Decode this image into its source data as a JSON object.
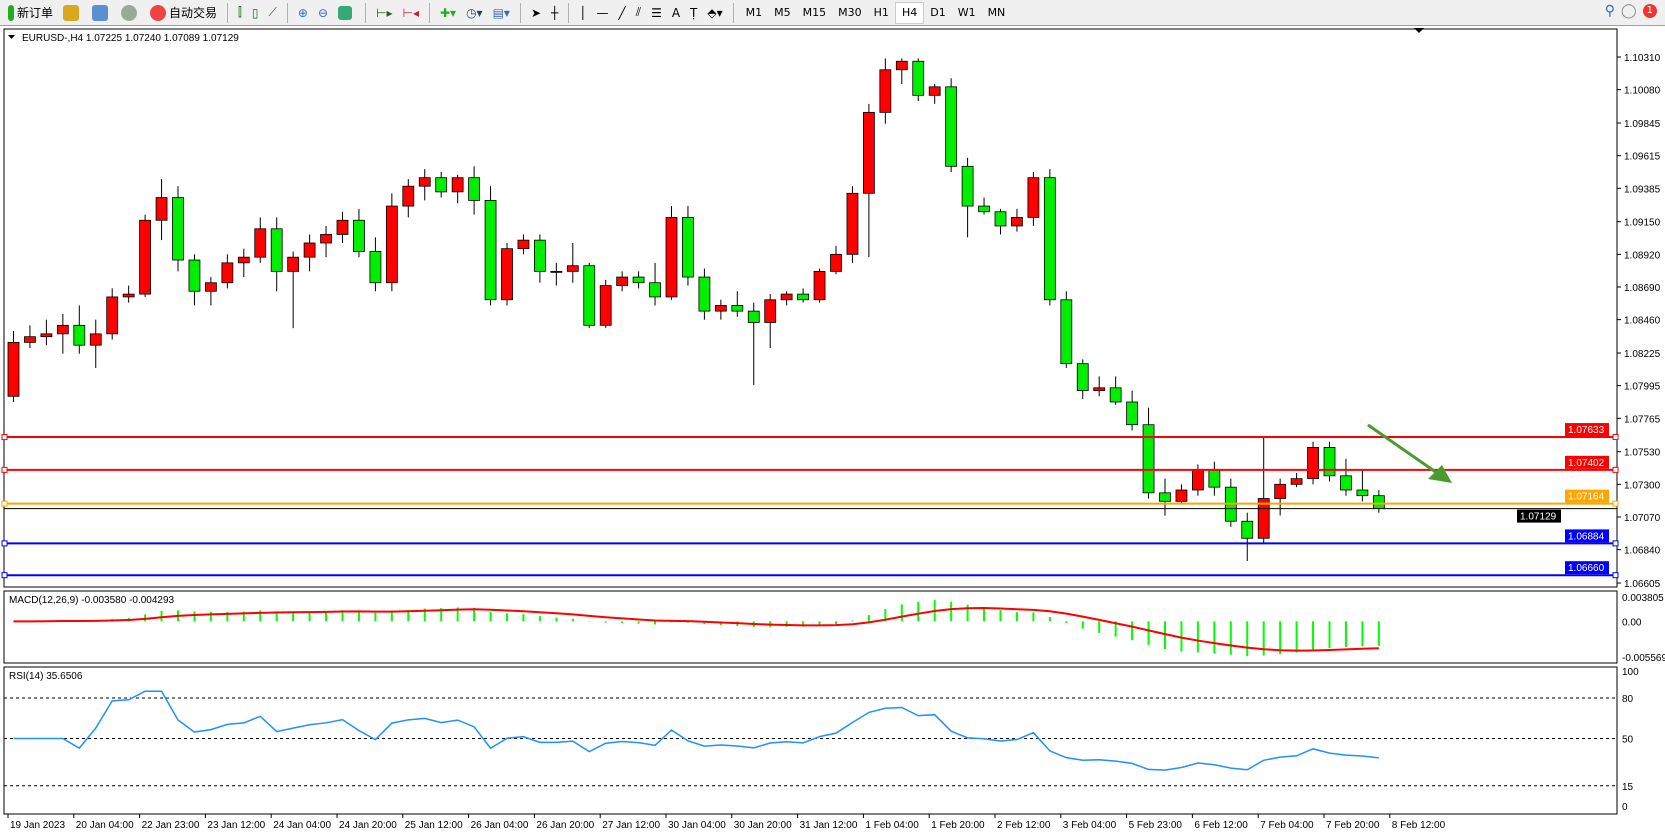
{
  "toolbar": {
    "new_order": "新订单",
    "auto_trading": "自动交易",
    "timeframes": [
      "M1",
      "M5",
      "M15",
      "M30",
      "H1",
      "H4",
      "D1",
      "W1",
      "MN"
    ],
    "active_timeframe": "H4",
    "notification_count": "1",
    "icons": [
      "gold-bars-icon",
      "data-window-icon",
      "signal-icon",
      "auto-trading-icon",
      "bar-chart-icon",
      "candlestick-icon",
      "line-chart-icon",
      "zoom-in-icon",
      "zoom-out-icon",
      "tile-windows-icon",
      "auto-scroll-icon",
      "chart-shift-icon",
      "indicators-icon",
      "periods-icon",
      "templates-icon",
      "cursor-icon",
      "crosshair-icon",
      "vertical-line-icon",
      "horizontal-line-icon",
      "trendline-icon",
      "equidistant-channel-icon",
      "fibonacci-icon",
      "text-icon",
      "text-label-icon",
      "arrows-icon",
      "search-icon",
      "chat-icon"
    ]
  },
  "chart": {
    "header": "EURUSD-,H4  1.07225 1.07240 1.07089 1.07129",
    "colors": {
      "bull": "#ff0000",
      "bear": "#00ee00",
      "macd_hist": "#00ff00",
      "macd_signal": "#ff0000",
      "rsi": "#1e90ff"
    },
    "price_ticks": [
      "1.10310",
      "1.10080",
      "1.09845",
      "1.09615",
      "1.09385",
      "1.09150",
      "1.08920",
      "1.08690",
      "1.08460",
      "1.08225",
      "1.07995",
      "1.07765",
      "1.07530",
      "1.07300",
      "1.07070",
      "1.06840",
      "1.06605"
    ],
    "price_range": [
      1.06605,
      1.1031
    ],
    "current_price": "1.07129",
    "levels": [
      {
        "price": "1.07633",
        "color": "#ff0000"
      },
      {
        "price": "1.07402",
        "color": "#ff0000"
      },
      {
        "price": "1.07164",
        "color": "#ffa500"
      },
      {
        "price": "1.06884",
        "color": "#0000ff"
      },
      {
        "price": "1.06660",
        "color": "#0000ff"
      }
    ],
    "time_labels": [
      "19 Jan 2023",
      "20 Jan 04:00",
      "22 Jan 23:00",
      "23 Jan 12:00",
      "24 Jan 04:00",
      "24 Jan 20:00",
      "25 Jan 12:00",
      "26 Jan 04:00",
      "26 Jan 20:00",
      "27 Jan 12:00",
      "30 Jan 04:00",
      "30 Jan 20:00",
      "31 Jan 12:00",
      "1 Feb 04:00",
      "1 Feb 20:00",
      "2 Feb 12:00",
      "3 Feb 04:00",
      "5 Feb 23:00",
      "6 Feb 12:00",
      "7 Feb 04:00",
      "7 Feb 20:00",
      "8 Feb 12:00"
    ],
    "macd": {
      "label": "MACD(12,26,9) -0.003580 -0.004293",
      "ticks": [
        "0.003805",
        "0.00",
        "-0.005569"
      ],
      "range": [
        -0.005569,
        0.003805
      ]
    },
    "rsi": {
      "label": "RSI(14) 35.6506",
      "ticks": [
        "100",
        "80",
        "50",
        "15",
        "0"
      ],
      "levels": [
        80,
        50,
        15
      ]
    }
  },
  "chart_data": {
    "type": "candlestick",
    "symbol": "EURUSD-",
    "timeframe": "H4",
    "ohlc": [
      [
        1.0792,
        1.0838,
        1.0788,
        1.083
      ],
      [
        1.083,
        1.0842,
        1.0826,
        1.0834
      ],
      [
        1.0834,
        1.0846,
        1.0828,
        1.0836
      ],
      [
        1.0836,
        1.085,
        1.0822,
        1.0842
      ],
      [
        1.0842,
        1.0856,
        1.0822,
        1.0828
      ],
      [
        1.0828,
        1.0846,
        1.0812,
        1.0836
      ],
      [
        1.0836,
        1.0868,
        1.0832,
        1.0862
      ],
      [
        1.0862,
        1.087,
        1.0858,
        1.0864
      ],
      [
        1.0864,
        1.092,
        1.0862,
        1.0916
      ],
      [
        1.0916,
        1.0945,
        1.0902,
        1.0932
      ],
      [
        1.0932,
        1.094,
        1.088,
        1.0888
      ],
      [
        1.0888,
        1.0892,
        1.0856,
        1.0866
      ],
      [
        1.0866,
        1.0876,
        1.0856,
        1.0872
      ],
      [
        1.0872,
        1.0892,
        1.0868,
        1.0886
      ],
      [
        1.0886,
        1.0896,
        1.0876,
        1.089
      ],
      [
        1.089,
        1.0918,
        1.0886,
        1.091
      ],
      [
        1.091,
        1.0918,
        1.0866,
        1.088
      ],
      [
        1.088,
        1.0894,
        1.084,
        1.089
      ],
      [
        1.089,
        1.0906,
        1.088,
        1.09
      ],
      [
        1.09,
        1.0912,
        1.089,
        1.0906
      ],
      [
        1.0906,
        1.0922,
        1.09,
        1.0916
      ],
      [
        1.0916,
        1.0924,
        1.089,
        1.0894
      ],
      [
        1.0894,
        1.0904,
        1.0866,
        1.0872
      ],
      [
        1.0872,
        1.0935,
        1.0866,
        1.0926
      ],
      [
        1.0926,
        1.0945,
        1.0918,
        1.094
      ],
      [
        1.094,
        1.0952,
        1.093,
        1.0946
      ],
      [
        1.0946,
        1.095,
        1.0932,
        1.0936
      ],
      [
        1.0936,
        1.0948,
        1.0928,
        1.0946
      ],
      [
        1.0946,
        1.0954,
        1.092,
        1.093
      ],
      [
        1.093,
        1.094,
        1.0856,
        1.086
      ],
      [
        1.086,
        1.09,
        1.0856,
        1.0896
      ],
      [
        1.0896,
        1.0906,
        1.0892,
        1.0902
      ],
      [
        1.0902,
        1.0906,
        1.0872,
        1.088
      ],
      [
        1.088,
        1.0886,
        1.087,
        1.088
      ],
      [
        1.088,
        1.09,
        1.0872,
        1.0884
      ],
      [
        1.0884,
        1.0886,
        1.084,
        1.0842
      ],
      [
        1.0842,
        1.0874,
        1.084,
        1.087
      ],
      [
        1.087,
        1.088,
        1.0866,
        1.0876
      ],
      [
        1.0876,
        1.088,
        1.0868,
        1.0872
      ],
      [
        1.0872,
        1.0886,
        1.0856,
        1.0862
      ],
      [
        1.0862,
        1.0926,
        1.086,
        1.0918
      ],
      [
        1.0918,
        1.0926,
        1.087,
        1.0876
      ],
      [
        1.0876,
        1.0882,
        1.0846,
        1.0852
      ],
      [
        1.0852,
        1.086,
        1.0846,
        1.0856
      ],
      [
        1.0856,
        1.0866,
        1.0848,
        1.0852
      ],
      [
        1.0852,
        1.0858,
        1.08,
        1.0844
      ],
      [
        1.0844,
        1.0864,
        1.0826,
        1.086
      ],
      [
        1.086,
        1.0866,
        1.0856,
        1.0864
      ],
      [
        1.0864,
        1.0868,
        1.0858,
        1.086
      ],
      [
        1.086,
        1.0882,
        1.0858,
        1.088
      ],
      [
        1.088,
        1.0898,
        1.0878,
        1.0892
      ],
      [
        1.0892,
        1.094,
        1.0886,
        1.0935
      ],
      [
        1.0935,
        1.0998,
        1.089,
        1.0992
      ],
      [
        1.0992,
        1.103,
        1.0984,
        1.1022
      ],
      [
        1.1022,
        1.103,
        1.1012,
        1.1028
      ],
      [
        1.1028,
        1.103,
        1.1,
        1.1004
      ],
      [
        1.1004,
        1.1012,
        1.0998,
        1.101
      ],
      [
        1.101,
        1.1016,
        1.095,
        1.0954
      ],
      [
        1.0954,
        1.096,
        1.0904,
        1.0926
      ],
      [
        1.0926,
        1.0932,
        1.092,
        1.0922
      ],
      [
        1.0922,
        1.0924,
        1.0906,
        1.0912
      ],
      [
        1.0912,
        1.0924,
        1.0908,
        1.0918
      ],
      [
        1.0918,
        1.095,
        1.0912,
        1.0946
      ],
      [
        1.0946,
        1.0952,
        1.0856,
        1.086
      ],
      [
        1.086,
        1.0866,
        1.0812,
        1.0815
      ],
      [
        1.0815,
        1.0818,
        1.079,
        1.0796
      ],
      [
        1.0796,
        1.0806,
        1.0792,
        1.0798
      ],
      [
        1.0798,
        1.0806,
        1.0786,
        1.0788
      ],
      [
        1.0788,
        1.0796,
        1.0768,
        1.0772
      ],
      [
        1.0772,
        1.0784,
        1.072,
        1.0724
      ],
      [
        1.0724,
        1.0734,
        1.0708,
        1.0718
      ],
      [
        1.0718,
        1.073,
        1.0716,
        1.0726
      ],
      [
        1.0726,
        1.0744,
        1.0722,
        1.074
      ],
      [
        1.074,
        1.0746,
        1.0722,
        1.0728
      ],
      [
        1.0728,
        1.0734,
        1.07,
        1.0704
      ],
      [
        1.0704,
        1.071,
        1.0676,
        1.0692
      ],
      [
        1.0692,
        1.0764,
        1.0688,
        1.072
      ],
      [
        1.072,
        1.0734,
        1.0708,
        1.073
      ],
      [
        1.073,
        1.0738,
        1.0728,
        1.0734
      ],
      [
        1.0734,
        1.076,
        1.073,
        1.0756
      ],
      [
        1.0756,
        1.076,
        1.0732,
        1.0736
      ],
      [
        1.0736,
        1.0748,
        1.0722,
        1.0726
      ],
      [
        1.0726,
        1.074,
        1.0718,
        1.0722
      ],
      [
        1.0722,
        1.0726,
        1.071,
        1.0713
      ]
    ],
    "indicators": [
      "MACD(12,26,9)",
      "RSI(14)"
    ]
  }
}
